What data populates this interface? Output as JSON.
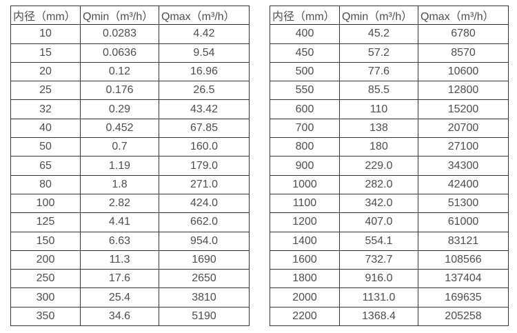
{
  "chart_data": [
    {
      "type": "table",
      "name": "flow-range-table-left",
      "columns": [
        "内径（mm）",
        "Qmin（m³/h）",
        "Qmax（m³/h）"
      ],
      "rows": [
        [
          "10",
          "0.0283",
          "4.42"
        ],
        [
          "15",
          "0.0636",
          "9.54"
        ],
        [
          "20",
          "0.12",
          "16.96"
        ],
        [
          "25",
          "0.176",
          "26.5"
        ],
        [
          "32",
          "0.29",
          "43.42"
        ],
        [
          "40",
          "0.452",
          "67.85"
        ],
        [
          "50",
          "0.7",
          "160.0"
        ],
        [
          "65",
          "1.19",
          "179.0"
        ],
        [
          "80",
          "1.8",
          "271.0"
        ],
        [
          "100",
          "2.82",
          "424.0"
        ],
        [
          "125",
          "4.41",
          "662.0"
        ],
        [
          "150",
          "6.63",
          "954.0"
        ],
        [
          "200",
          "11.3",
          "1690"
        ],
        [
          "250",
          "17.6",
          "2650"
        ],
        [
          "300",
          "25.4",
          "3810"
        ],
        [
          "350",
          "34.6",
          "5190"
        ]
      ]
    },
    {
      "type": "table",
      "name": "flow-range-table-right",
      "columns": [
        "内径（mm）",
        "Qmin（m³/h）",
        "Qmax（m³/h）"
      ],
      "rows": [
        [
          "400",
          "45.2",
          "6780"
        ],
        [
          "450",
          "57.2",
          "8570"
        ],
        [
          "500",
          "77.6",
          "10600"
        ],
        [
          "550",
          "85.5",
          "12800"
        ],
        [
          "600",
          "110",
          "15200"
        ],
        [
          "700",
          "138",
          "20700"
        ],
        [
          "800",
          "180",
          "27100"
        ],
        [
          "900",
          "229.0",
          "34300"
        ],
        [
          "1000",
          "282.0",
          "42400"
        ],
        [
          "1100",
          "342.0",
          "51300"
        ],
        [
          "1200",
          "407.0",
          "61000"
        ],
        [
          "1400",
          "554.1",
          "83121"
        ],
        [
          "1600",
          "732.7",
          "108566"
        ],
        [
          "1800",
          "916.0",
          "137404"
        ],
        [
          "2000",
          "1131.0",
          "169635"
        ],
        [
          "2200",
          "1368.4",
          "205258"
        ]
      ]
    }
  ],
  "colors": {
    "border": "#333333",
    "text": "#4d4d4d",
    "background": "#ffffff"
  }
}
